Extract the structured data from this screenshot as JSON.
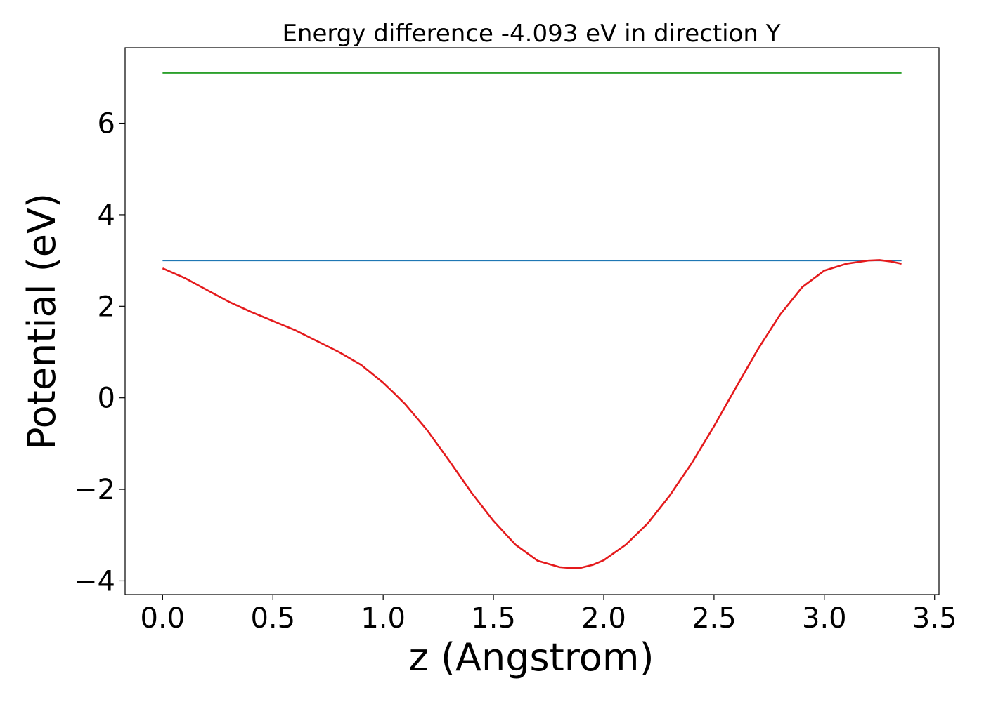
{
  "chart_data": {
    "type": "line",
    "title": "Energy difference -4.093 eV in direction Y",
    "xlabel": "z (Angstrom)",
    "ylabel": "Potential (eV)",
    "xlim": [
      -0.17,
      3.52
    ],
    "ylim": [
      -4.3,
      7.65
    ],
    "xticks": [
      0.0,
      0.5,
      1.0,
      1.5,
      2.0,
      2.5,
      3.0,
      3.5
    ],
    "xtick_labels": [
      "0.0",
      "0.5",
      "1.0",
      "1.5",
      "2.0",
      "2.5",
      "3.0",
      "3.5"
    ],
    "yticks": [
      -4,
      -2,
      0,
      2,
      4,
      6
    ],
    "ytick_labels": [
      "−4",
      "−2",
      "0",
      "2",
      "4",
      "6"
    ],
    "grid": false,
    "legend": "none",
    "series": [
      {
        "color": "#2ca02c",
        "x": [
          0.0,
          3.35
        ],
        "y": [
          7.1,
          7.1
        ]
      },
      {
        "color": "#1f77b4",
        "x": [
          0.0,
          3.35
        ],
        "y": [
          3.0,
          3.0
        ]
      },
      {
        "color": "#e41a1c",
        "x": [
          0.0,
          0.1,
          0.2,
          0.3,
          0.4,
          0.5,
          0.6,
          0.7,
          0.8,
          0.9,
          1.0,
          1.05,
          1.1,
          1.2,
          1.3,
          1.4,
          1.5,
          1.6,
          1.7,
          1.8,
          1.85,
          1.9,
          1.95,
          2.0,
          2.1,
          2.2,
          2.3,
          2.4,
          2.5,
          2.6,
          2.7,
          2.8,
          2.9,
          3.0,
          3.1,
          3.2,
          3.25,
          3.3,
          3.35
        ],
        "y": [
          2.83,
          2.62,
          2.36,
          2.1,
          1.88,
          1.68,
          1.48,
          1.24,
          1.0,
          0.72,
          0.33,
          0.1,
          -0.14,
          -0.71,
          -1.38,
          -2.07,
          -2.69,
          -3.21,
          -3.56,
          -3.7,
          -3.72,
          -3.71,
          -3.65,
          -3.55,
          -3.21,
          -2.74,
          -2.13,
          -1.42,
          -0.62,
          0.23,
          1.07,
          1.82,
          2.42,
          2.78,
          2.93,
          3.0,
          3.01,
          2.98,
          2.93
        ]
      }
    ]
  }
}
